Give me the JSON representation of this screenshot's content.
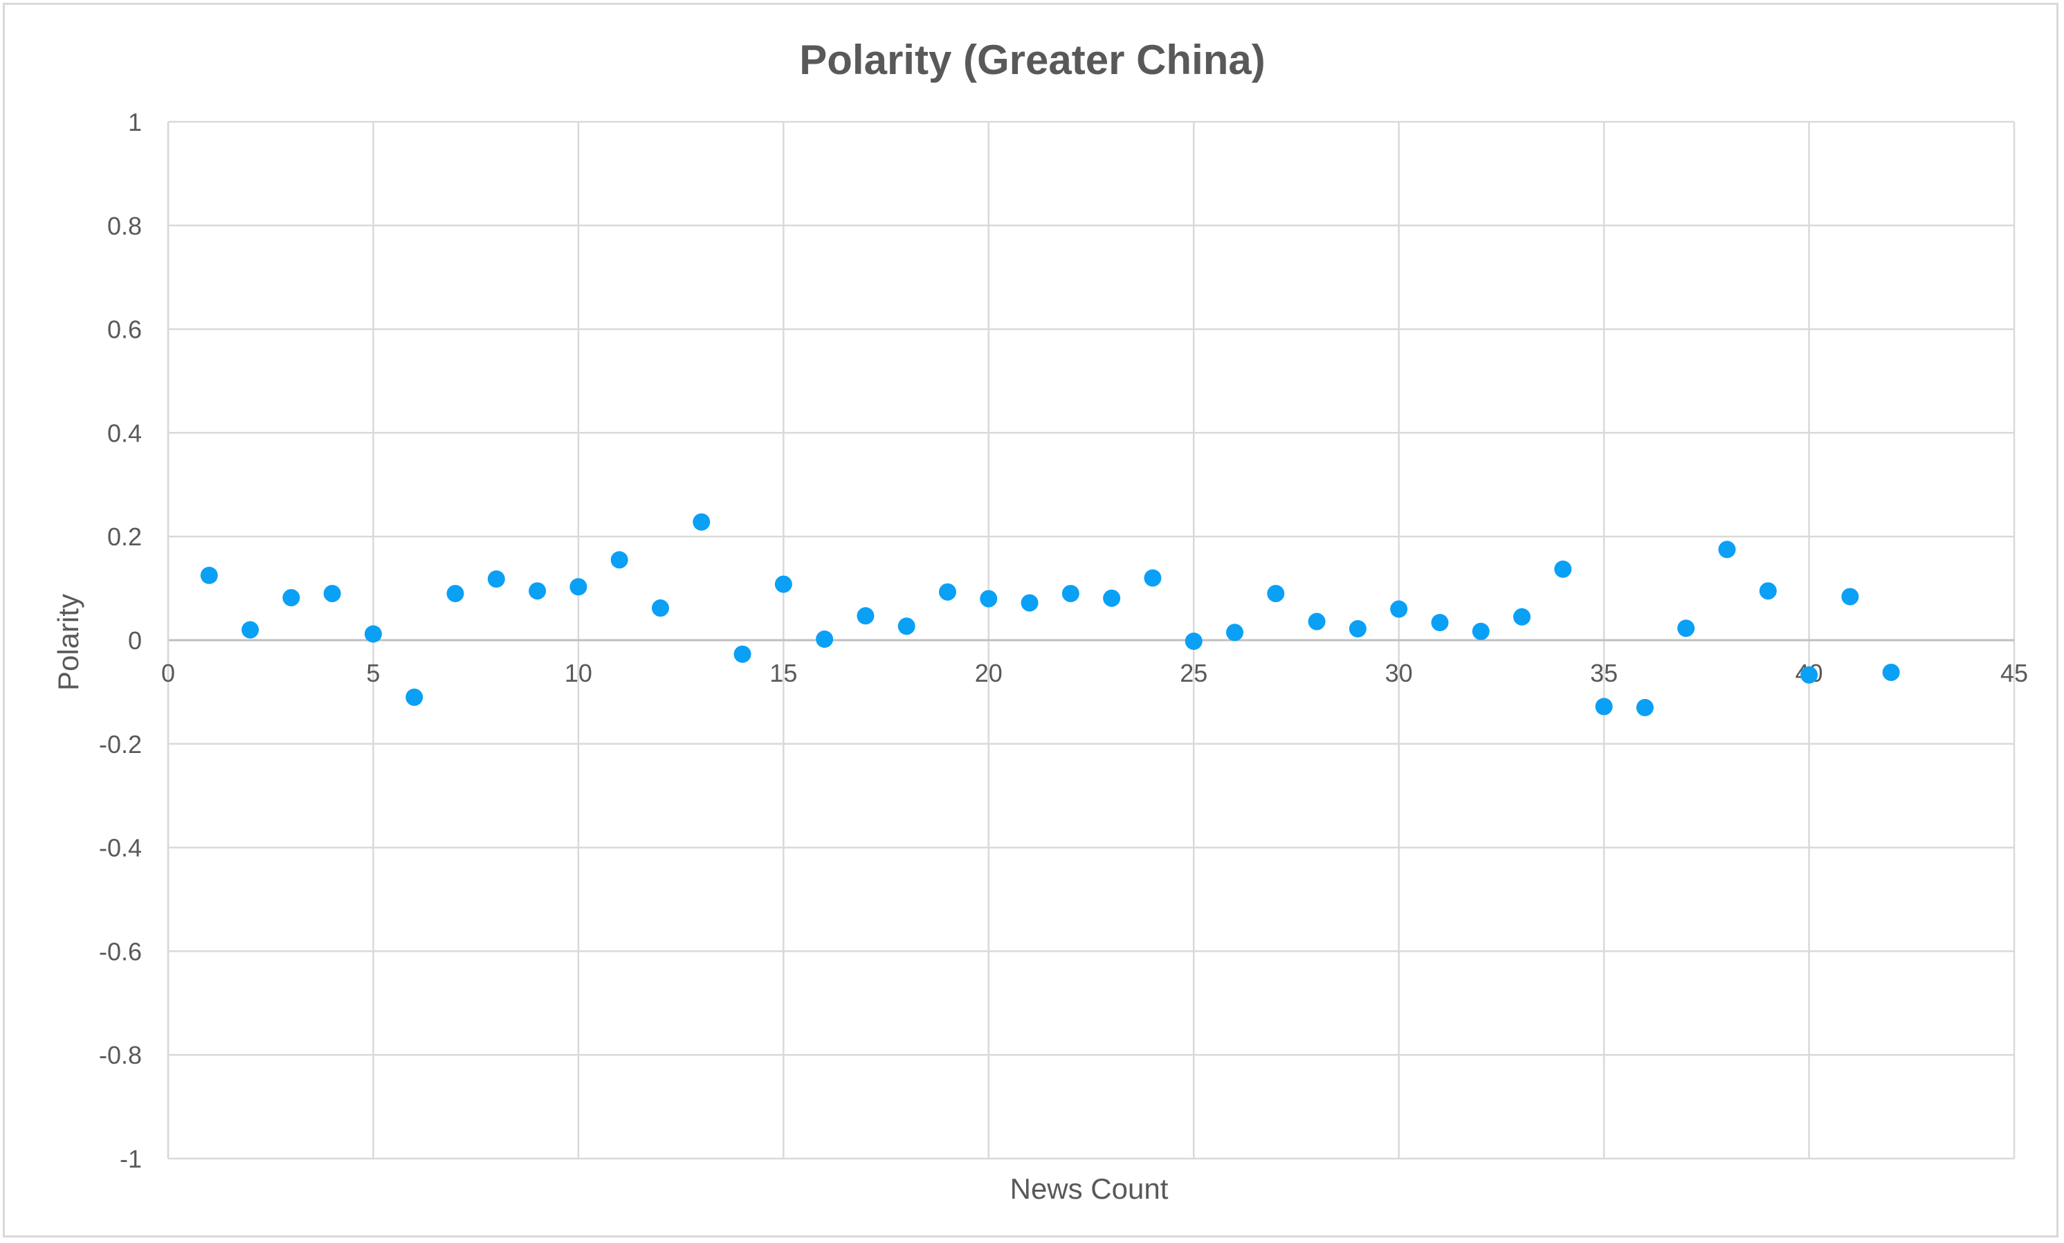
{
  "chart_data": {
    "type": "scatter",
    "title": "Polarity (Greater China)",
    "xlabel": "News Count",
    "ylabel": "Polarity",
    "xlim": [
      0,
      45
    ],
    "ylim": [
      -1,
      1
    ],
    "x_ticks": [
      "0",
      "5",
      "10",
      "15",
      "20",
      "25",
      "30",
      "35",
      "40",
      "45"
    ],
    "y_ticks": [
      "1",
      "0.8",
      "0.6",
      "0.4",
      "0.2",
      "0",
      "-0.2",
      "-0.4",
      "-0.6",
      "-0.8",
      "-1"
    ],
    "grid": true,
    "legend": "none",
    "marker_color": "#0aa0f5",
    "x": [
      1,
      2,
      3,
      4,
      5,
      6,
      7,
      8,
      9,
      10,
      11,
      12,
      13,
      14,
      15,
      16,
      17,
      18,
      19,
      20,
      21,
      22,
      23,
      24,
      25,
      26,
      27,
      28,
      29,
      30,
      31,
      32,
      33,
      34,
      35,
      36,
      37,
      38,
      39,
      40,
      41,
      42
    ],
    "y": [
      0.125,
      0.02,
      0.082,
      0.09,
      0.012,
      -0.11,
      0.09,
      0.118,
      0.095,
      0.103,
      0.155,
      0.062,
      0.228,
      -0.027,
      0.108,
      0.002,
      0.047,
      0.027,
      0.093,
      0.08,
      0.072,
      0.09,
      0.081,
      0.12,
      -0.002,
      0.015,
      0.09,
      0.036,
      0.022,
      0.06,
      0.034,
      0.017,
      0.045,
      0.137,
      -0.128,
      -0.13,
      0.023,
      0.175,
      0.095,
      -0.067,
      0.084,
      -0.062
    ]
  }
}
